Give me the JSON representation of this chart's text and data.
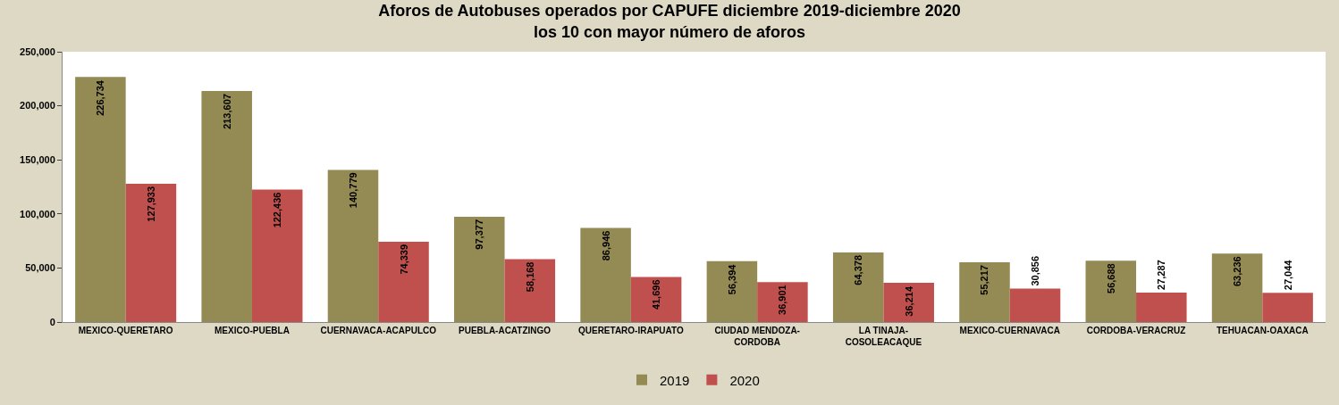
{
  "chart_data": {
    "type": "bar",
    "title": "Aforos de Autobuses operados por CAPUFE diciembre 2019-diciembre 2020",
    "subtitle": "los 10 con mayor número de aforos",
    "categories": [
      "MEXICO-QUERETARO",
      "MEXICO-PUEBLA",
      "CUERNAVACA-ACAPULCO",
      "PUEBLA-ACATZINGO",
      "QUERETARO-IRAPUATO",
      "CIUDAD MENDOZA-CORDOBA",
      "LA TINAJA-COSOLEACAQUE",
      "MEXICO-CUERNAVACA",
      "CORDOBA-VERACRUZ",
      "TEHUACAN-OAXACA"
    ],
    "series": [
      {
        "name": "2019",
        "color": "#948a54",
        "values": [
          226734,
          213607,
          140779,
          97377,
          86946,
          56394,
          64378,
          55217,
          56688,
          63236
        ],
        "value_labels": [
          "226,734",
          "213,607",
          "140,779",
          "97,377",
          "86,946",
          "56,394",
          "64,378",
          "55,217",
          "56,688",
          "63,236"
        ]
      },
      {
        "name": "2020",
        "color": "#c0504d",
        "values": [
          127933,
          122436,
          74339,
          58168,
          41696,
          36901,
          36214,
          30856,
          27287,
          27044
        ],
        "value_labels": [
          "127,933",
          "122,436",
          "74,339",
          "58,168",
          "41,696",
          "36,901",
          "36,214",
          "30,856",
          "27,287",
          "27,044"
        ]
      }
    ],
    "ylim": [
      0,
      250000
    ],
    "yticks": [
      {
        "value": 0,
        "label": "0"
      },
      {
        "value": 50000,
        "label": "50,000"
      },
      {
        "value": 100000,
        "label": "100,000"
      },
      {
        "value": 150000,
        "label": "150,000"
      },
      {
        "value": 200000,
        "label": "200,000"
      },
      {
        "value": 250000,
        "label": "250,000"
      }
    ],
    "legend": "bottom"
  }
}
